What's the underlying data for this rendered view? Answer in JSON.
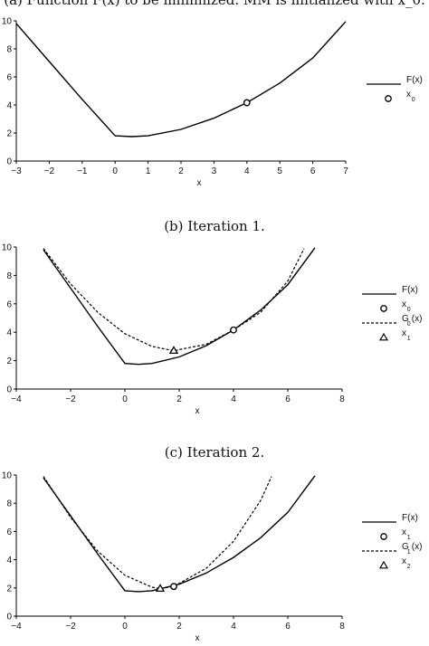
{
  "captions": {
    "a": "(a) Function F(x) to be minimized. MM is initialized with x_0.",
    "b": "(b) Iteration 1.",
    "c": "(c) Iteration 2."
  },
  "chart_data": [
    {
      "type": "line",
      "panel": "a",
      "xlabel": "x",
      "ylabel": "",
      "xlim": [
        -3,
        7
      ],
      "ylim": [
        0,
        10
      ],
      "xticks": [
        -3,
        -2,
        -1,
        0,
        1,
        2,
        3,
        4,
        5,
        6,
        7
      ],
      "yticks": [
        0,
        2,
        4,
        6,
        8,
        10
      ],
      "legend_position": "right",
      "series": [
        {
          "name": "F(x)",
          "style": "solid",
          "color": "#000000",
          "x": [
            -3,
            -2,
            -1,
            0,
            0.5,
            1,
            2,
            3,
            4,
            5,
            6,
            7
          ],
          "y": [
            9.8,
            7.1,
            4.4,
            1.8,
            1.74,
            1.8,
            2.26,
            3.06,
            4.16,
            5.56,
            7.35,
            9.95
          ]
        },
        {
          "name": "x_0",
          "marker": "circle",
          "x": [
            4
          ],
          "y": [
            4.16
          ]
        }
      ],
      "legend": [
        {
          "label": "F(x)",
          "sub": "",
          "symbol": "solid"
        },
        {
          "label": "x",
          "sub": "0",
          "symbol": "circle"
        }
      ]
    },
    {
      "type": "line",
      "panel": "b",
      "xlabel": "x",
      "ylabel": "",
      "xlim": [
        -4,
        8
      ],
      "ylim": [
        0,
        10
      ],
      "xticks": [
        -4,
        -2,
        0,
        2,
        4,
        6,
        8
      ],
      "yticks": [
        0,
        2,
        4,
        6,
        8,
        10
      ],
      "legend_position": "right",
      "series": [
        {
          "name": "F(x)",
          "style": "solid",
          "color": "#000000",
          "x": [
            -3,
            -2,
            -1,
            0,
            0.5,
            1,
            2,
            3,
            4,
            5,
            6,
            7
          ],
          "y": [
            9.8,
            7.1,
            4.4,
            1.8,
            1.74,
            1.8,
            2.26,
            3.06,
            4.16,
            5.56,
            7.35,
            9.95
          ]
        },
        {
          "name": "G_0(x)",
          "style": "dashed",
          "color": "#000000",
          "x": [
            -3,
            -2,
            -1,
            0,
            1,
            1.8,
            3,
            4,
            5,
            6,
            6.6
          ],
          "y": [
            9.9,
            7.4,
            5.4,
            3.9,
            3.0,
            2.7,
            3.15,
            4.16,
            5.4,
            7.6,
            9.9
          ]
        },
        {
          "name": "x_0",
          "marker": "circle",
          "x": [
            4
          ],
          "y": [
            4.16
          ]
        },
        {
          "name": "x_1",
          "marker": "triangle",
          "x": [
            1.8
          ],
          "y": [
            2.7
          ]
        }
      ],
      "legend": [
        {
          "label": "F(x)",
          "sub": "",
          "symbol": "solid"
        },
        {
          "label": "x",
          "sub": "0",
          "symbol": "circle"
        },
        {
          "label": "G",
          "sub": "0",
          "label2": "(x)",
          "symbol": "dashed"
        },
        {
          "label": "x",
          "sub": "1",
          "symbol": "triangle"
        }
      ]
    },
    {
      "type": "line",
      "panel": "c",
      "xlabel": "x",
      "ylabel": "",
      "xlim": [
        -4,
        8
      ],
      "ylim": [
        0,
        10
      ],
      "xticks": [
        -4,
        -2,
        0,
        2,
        4,
        6,
        8
      ],
      "yticks": [
        0,
        2,
        4,
        6,
        8,
        10
      ],
      "legend_position": "right",
      "series": [
        {
          "name": "F(x)",
          "style": "solid",
          "color": "#000000",
          "x": [
            -3,
            -2,
            -1,
            0,
            0.5,
            1,
            2,
            3,
            4,
            5,
            6,
            7
          ],
          "y": [
            9.8,
            7.1,
            4.4,
            1.8,
            1.74,
            1.8,
            2.26,
            3.06,
            4.16,
            5.56,
            7.35,
            9.95
          ]
        },
        {
          "name": "G_1(x)",
          "style": "dashed",
          "color": "#000000",
          "x": [
            -3,
            -2,
            -1,
            0,
            1,
            1.3,
            1.8,
            3,
            4,
            5,
            5.4
          ],
          "y": [
            9.9,
            7.0,
            4.6,
            2.9,
            2.05,
            1.95,
            2.1,
            3.4,
            5.3,
            8.2,
            9.9
          ]
        },
        {
          "name": "x_1",
          "marker": "circle",
          "x": [
            1.8
          ],
          "y": [
            2.1
          ]
        },
        {
          "name": "x_2",
          "marker": "triangle",
          "x": [
            1.3
          ],
          "y": [
            1.95
          ]
        }
      ],
      "legend": [
        {
          "label": "F(x)",
          "sub": "",
          "symbol": "solid"
        },
        {
          "label": "x",
          "sub": "1",
          "symbol": "circle"
        },
        {
          "label": "G",
          "sub": "1",
          "label2": "(x)",
          "symbol": "dashed"
        },
        {
          "label": "x",
          "sub": "2",
          "symbol": "triangle"
        }
      ]
    }
  ]
}
